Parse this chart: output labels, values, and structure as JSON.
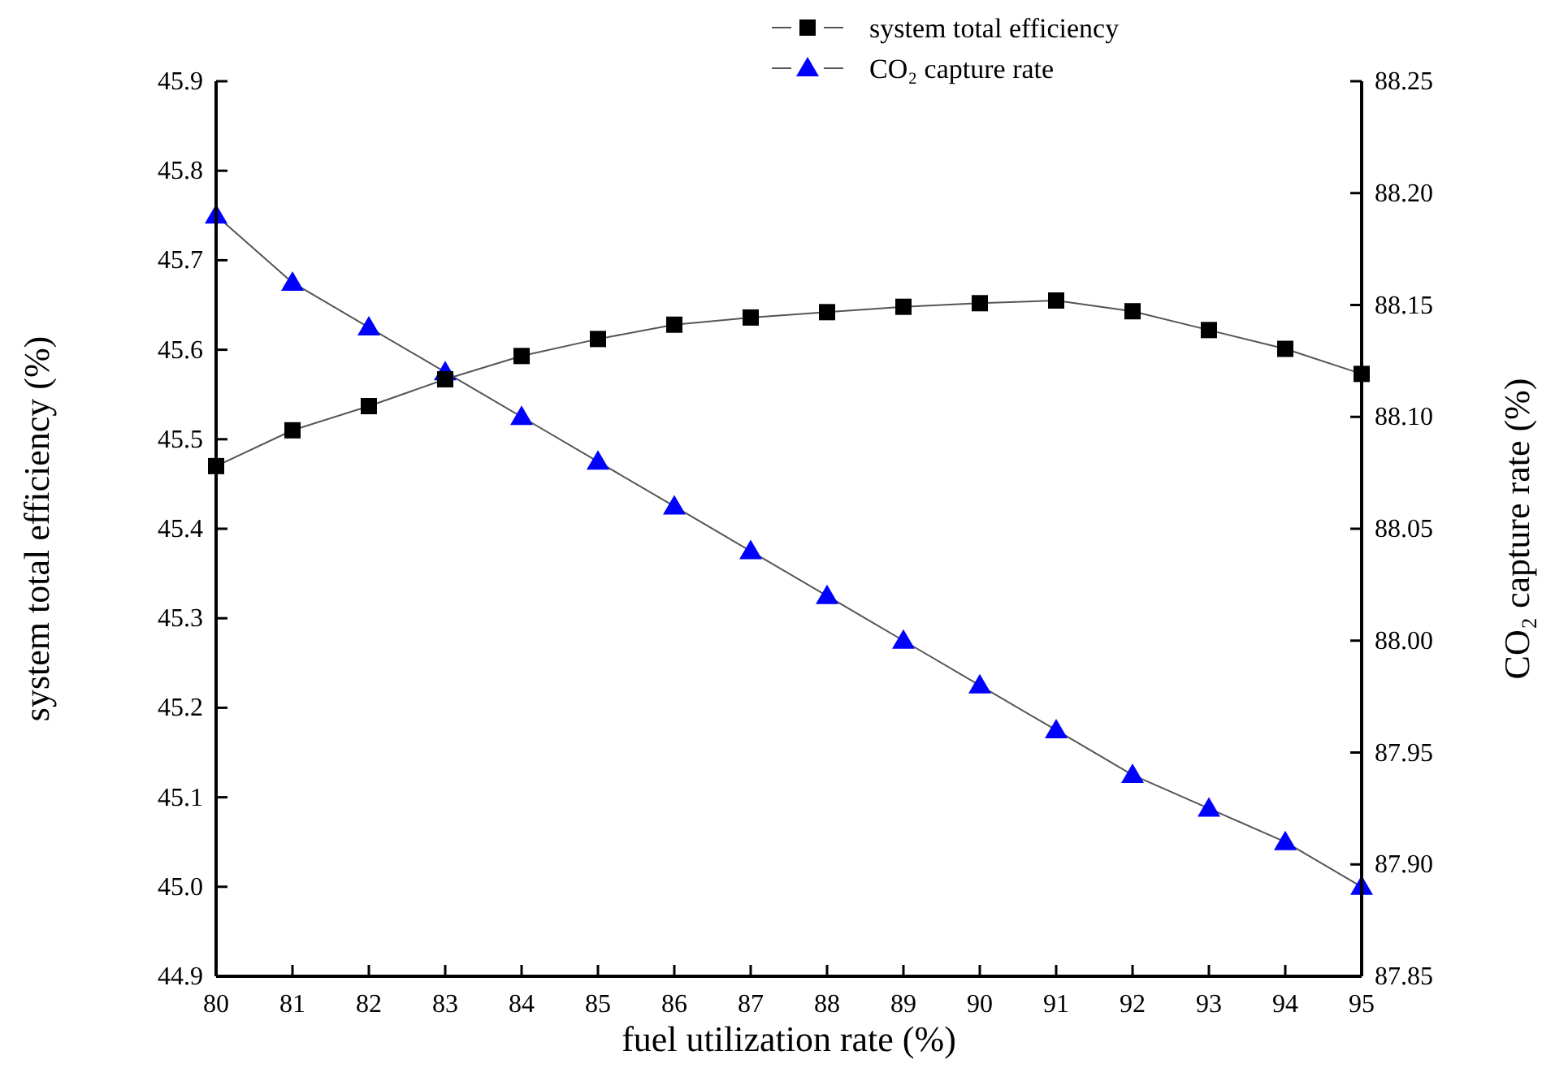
{
  "chart_data": {
    "type": "line",
    "xlabel": "fuel utilization rate (%)",
    "ylabel": "system total efficiency (%)",
    "y2label": "CO₂ capture rate (%)",
    "x": [
      80,
      81,
      82,
      83,
      84,
      85,
      86,
      87,
      88,
      89,
      90,
      91,
      92,
      93,
      94,
      95
    ],
    "series": [
      {
        "name": "system total efficiency",
        "color": "#000000",
        "marker": "square",
        "values": [
          45.47,
          45.51,
          45.537,
          45.567,
          45.593,
          45.612,
          45.628,
          45.636,
          45.642,
          45.648,
          45.652,
          45.655,
          45.643,
          45.622,
          45.601,
          45.573
        ]
      },
      {
        "name": "CO₂ capture rate",
        "color": "#0000ff",
        "marker": "triangle",
        "axis": "y2",
        "values": [
          88.19,
          88.16,
          88.14,
          88.12,
          88.1,
          88.08,
          88.06,
          88.04,
          88.02,
          88.0,
          87.98,
          87.96,
          87.94,
          87.925,
          87.91,
          87.89
        ]
      }
    ],
    "xlim": [
      80,
      95
    ],
    "xticks": [
      80,
      81,
      82,
      83,
      84,
      85,
      86,
      87,
      88,
      89,
      90,
      91,
      92,
      93,
      94,
      95
    ],
    "ylim": [
      44.9,
      45.9
    ],
    "yticks": [
      {
        "value": 44.9,
        "label": "44.9"
      },
      {
        "value": 45.0,
        "label": "45.0"
      },
      {
        "value": 45.1,
        "label": "45.1"
      },
      {
        "value": 45.2,
        "label": "45.2"
      },
      {
        "value": 45.3,
        "label": "45.3"
      },
      {
        "value": 45.4,
        "label": "45.4"
      },
      {
        "value": 45.5,
        "label": "45.5"
      },
      {
        "value": 45.6,
        "label": "45.6"
      },
      {
        "value": 45.7,
        "label": "45.7"
      },
      {
        "value": 45.8,
        "label": "45.8"
      },
      {
        "value": 45.9,
        "label": "45.9"
      }
    ],
    "y2lim": [
      87.85,
      88.25
    ],
    "y2ticks": [
      {
        "value": 87.85,
        "label": "87.85"
      },
      {
        "value": 87.9,
        "label": "87.90"
      },
      {
        "value": 87.95,
        "label": "87.95"
      },
      {
        "value": 88.0,
        "label": "88.00"
      },
      {
        "value": 88.05,
        "label": "88.05"
      },
      {
        "value": 88.1,
        "label": "88.10"
      },
      {
        "value": 88.15,
        "label": "88.15"
      },
      {
        "value": 88.2,
        "label": "88.20"
      },
      {
        "value": 88.25,
        "label": "88.25"
      }
    ],
    "grid": false,
    "legend": "top right",
    "line_style": "solid"
  }
}
